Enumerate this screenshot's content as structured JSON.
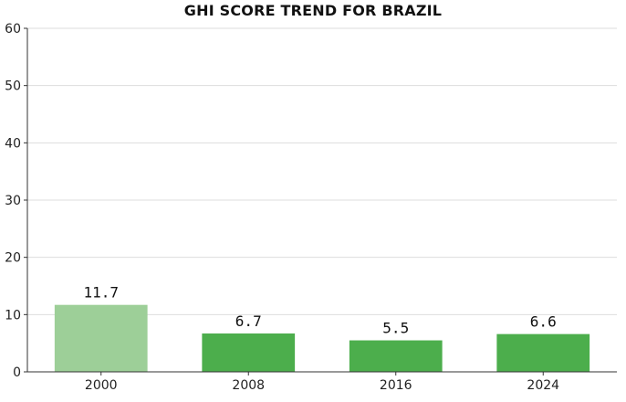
{
  "chart_data": {
    "type": "bar",
    "title": "GHI SCORE TREND FOR BRAZIL",
    "categories": [
      "2000",
      "2008",
      "2016",
      "2024"
    ],
    "values": [
      11.7,
      6.7,
      5.5,
      6.6
    ],
    "value_labels": [
      "11.7",
      "6.7",
      "5.5",
      "6.6"
    ],
    "bar_colors": [
      "#9dcf98",
      "#4cae4c",
      "#4cae4c",
      "#4cae4c"
    ],
    "ylim": [
      0,
      60
    ],
    "yticks": [
      0,
      10,
      20,
      30,
      40,
      50,
      60
    ],
    "ytick_labels": [
      "0",
      "10",
      "20",
      "30",
      "40",
      "50",
      "60"
    ],
    "xlabel": "",
    "ylabel": "",
    "grid": true,
    "grid_color": "#dddddd",
    "axis_color": "#333333"
  }
}
